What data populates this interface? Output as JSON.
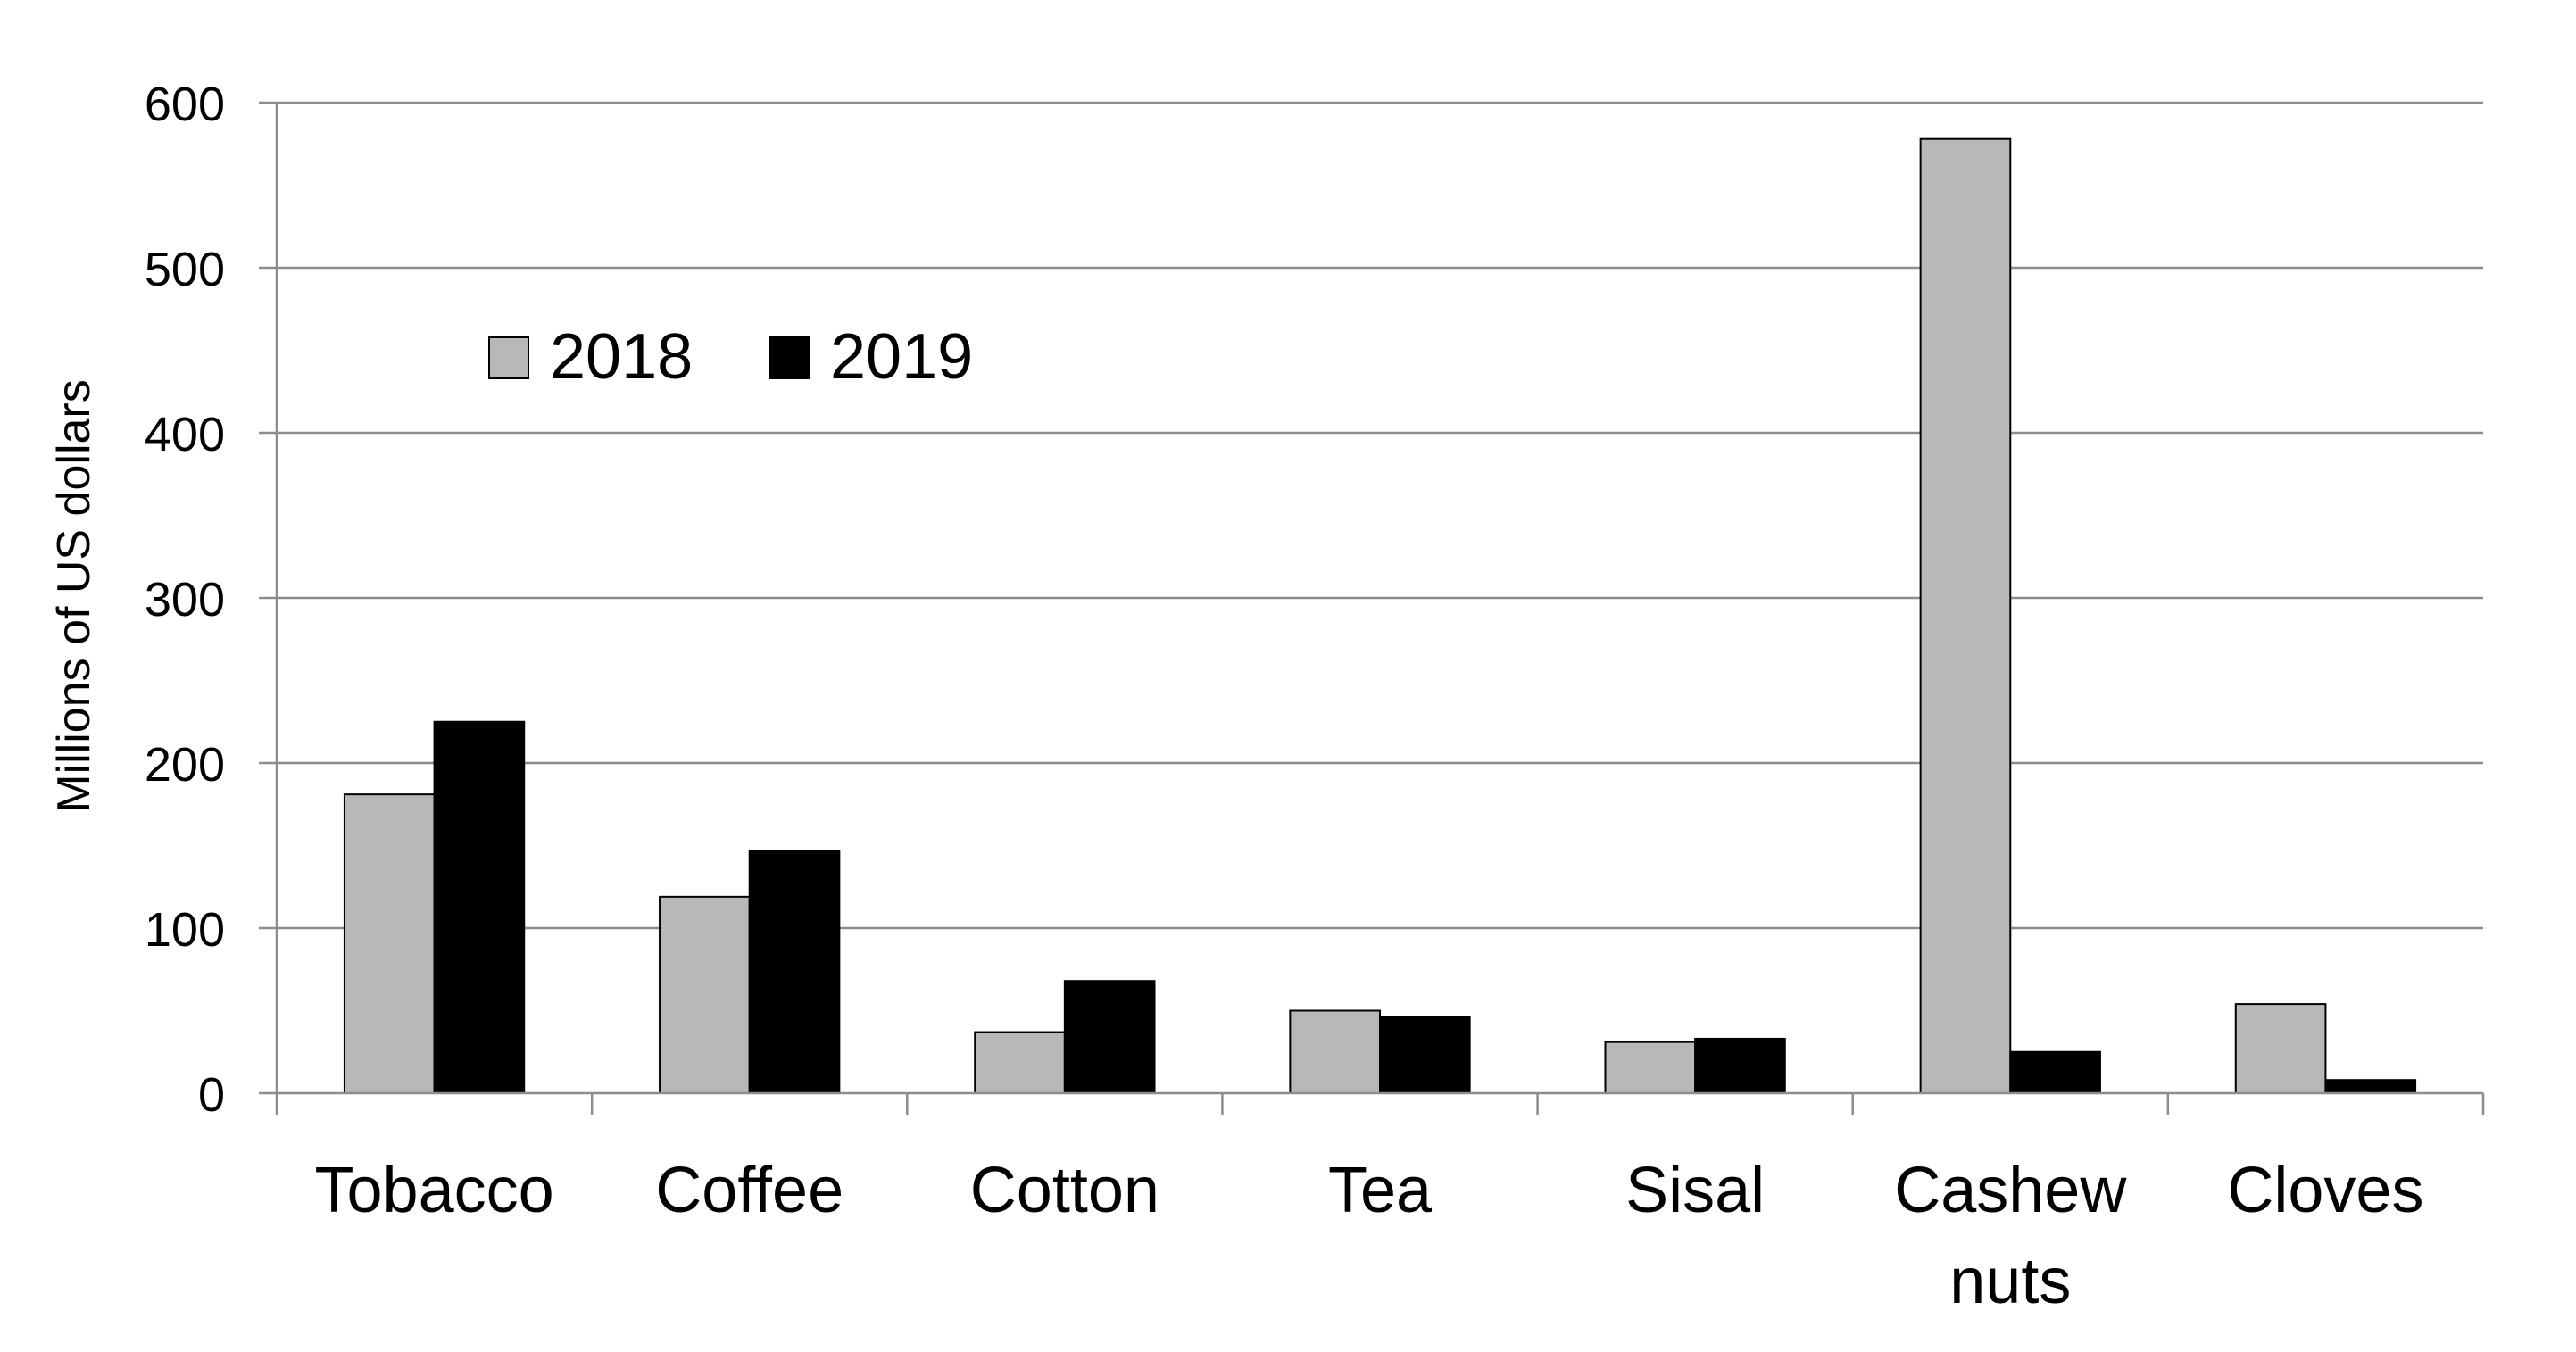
{
  "chart_data": {
    "type": "bar",
    "title": "",
    "xlabel": "",
    "ylabel": "Millions of US dollars",
    "ylim": [
      0,
      600
    ],
    "yticks": [
      0,
      100,
      200,
      300,
      400,
      500,
      600
    ],
    "grid": true,
    "legend_position": "top-left",
    "categories": [
      [
        "Tobacco"
      ],
      [
        "Coffee"
      ],
      [
        "Cotton"
      ],
      [
        "Tea"
      ],
      [
        "Sisal"
      ],
      [
        "Cashew",
        "nuts"
      ],
      [
        "Cloves"
      ]
    ],
    "series": [
      {
        "name": "2018",
        "color": "#b8b8b8",
        "values": [
          181,
          119,
          37,
          50,
          31,
          578,
          54
        ]
      },
      {
        "name": "2019",
        "color": "#000000",
        "values": [
          225,
          147,
          68,
          46,
          33,
          25,
          8
        ]
      }
    ]
  }
}
